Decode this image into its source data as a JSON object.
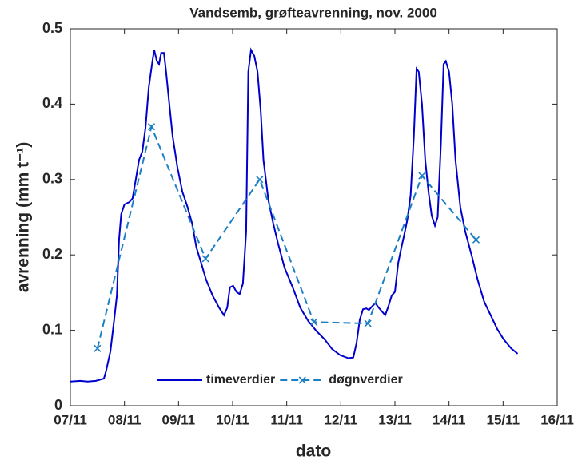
{
  "chart_data": {
    "type": "line",
    "title": "Vandsemb, grøfteavrenning, nov. 2000",
    "xlabel": "dato",
    "ylabel": "avrenning (mm t⁻¹)",
    "xlim": [
      7,
      16
    ],
    "xticks": [
      {
        "value": 7,
        "label": "07/11"
      },
      {
        "value": 8,
        "label": "08/11"
      },
      {
        "value": 9,
        "label": "09/11"
      },
      {
        "value": 10,
        "label": "10/11"
      },
      {
        "value": 11,
        "label": "11/11"
      },
      {
        "value": 12,
        "label": "12/11"
      },
      {
        "value": 13,
        "label": "13/11"
      },
      {
        "value": 14,
        "label": "14/11"
      },
      {
        "value": 15,
        "label": "15/11"
      },
      {
        "value": 16,
        "label": "16/11"
      }
    ],
    "ylim": [
      0,
      0.5
    ],
    "yticks": [
      0,
      0.1,
      0.2,
      0.3,
      0.4,
      0.5
    ],
    "legend": "bottom",
    "series": [
      {
        "name": "timeverdier",
        "color": "#0000cc",
        "dash": false,
        "marker": false,
        "x": [
          7.0,
          7.18,
          7.32,
          7.47,
          7.62,
          7.66,
          7.74,
          7.81,
          7.86,
          7.9,
          7.94,
          8.0,
          8.09,
          8.15,
          8.21,
          8.27,
          8.33,
          8.39,
          8.45,
          8.51,
          8.55,
          8.6,
          8.64,
          8.68,
          8.73,
          8.77,
          8.83,
          8.89,
          8.98,
          9.07,
          9.16,
          9.25,
          9.33,
          9.42,
          9.51,
          9.63,
          9.75,
          9.84,
          9.9,
          9.95,
          10.01,
          10.07,
          10.13,
          10.19,
          10.25,
          10.29,
          10.34,
          10.4,
          10.46,
          10.52,
          10.57,
          10.66,
          10.75,
          10.84,
          10.96,
          11.11,
          11.25,
          11.4,
          11.55,
          11.7,
          11.84,
          11.99,
          12.14,
          12.23,
          12.29,
          12.35,
          12.41,
          12.47,
          12.52,
          12.58,
          12.64,
          12.7,
          12.76,
          12.82,
          12.88,
          12.94,
          13.0,
          13.06,
          13.12,
          13.17,
          13.23,
          13.29,
          13.35,
          13.4,
          13.44,
          13.5,
          13.56,
          13.62,
          13.68,
          13.74,
          13.79,
          13.85,
          13.9,
          13.94,
          14.0,
          14.06,
          14.12,
          14.21,
          14.3,
          14.42,
          14.53,
          14.65,
          14.77,
          14.89,
          15.01,
          15.15,
          15.27
        ],
        "values": [
          0.032,
          0.033,
          0.032,
          0.033,
          0.036,
          0.046,
          0.072,
          0.114,
          0.146,
          0.22,
          0.254,
          0.267,
          0.27,
          0.275,
          0.3,
          0.326,
          0.337,
          0.369,
          0.422,
          0.453,
          0.472,
          0.457,
          0.453,
          0.468,
          0.468,
          0.443,
          0.4,
          0.358,
          0.316,
          0.284,
          0.265,
          0.242,
          0.21,
          0.189,
          0.167,
          0.146,
          0.13,
          0.12,
          0.13,
          0.157,
          0.159,
          0.151,
          0.148,
          0.162,
          0.231,
          0.443,
          0.472,
          0.464,
          0.443,
          0.39,
          0.326,
          0.273,
          0.242,
          0.215,
          0.183,
          0.157,
          0.13,
          0.112,
          0.099,
          0.088,
          0.075,
          0.067,
          0.063,
          0.064,
          0.083,
          0.114,
          0.128,
          0.129,
          0.127,
          0.132,
          0.136,
          0.13,
          0.125,
          0.12,
          0.132,
          0.146,
          0.151,
          0.189,
          0.21,
          0.226,
          0.247,
          0.279,
          0.358,
          0.447,
          0.443,
          0.4,
          0.326,
          0.284,
          0.252,
          0.239,
          0.25,
          0.347,
          0.453,
          0.457,
          0.443,
          0.4,
          0.326,
          0.263,
          0.231,
          0.199,
          0.167,
          0.138,
          0.12,
          0.102,
          0.088,
          0.076,
          0.069
        ]
      },
      {
        "name": "døgnverdier",
        "color": "#1a7fc4",
        "dash": true,
        "marker": true,
        "x": [
          7.5,
          8.5,
          9.5,
          10.5,
          11.5,
          12.5,
          13.5,
          14.5
        ],
        "values": [
          0.076,
          0.37,
          0.195,
          0.3,
          0.111,
          0.109,
          0.305,
          0.22
        ]
      }
    ]
  }
}
